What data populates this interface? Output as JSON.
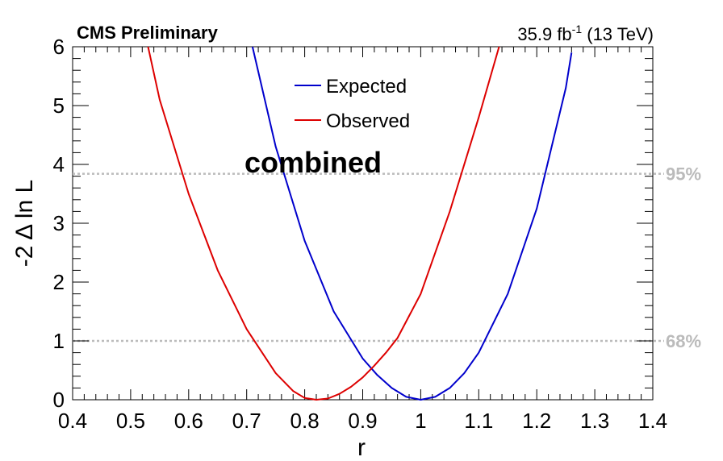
{
  "chart_data": {
    "type": "line",
    "header_left": "CMS Preliminary",
    "lumi": "35.9 fb",
    "lumi_exp": "-1",
    "energy": "(13 TeV)",
    "annotation": "combined",
    "xlabel": "r",
    "ylabel": "-2 Δ ln L",
    "xlim": [
      0.4,
      1.4
    ],
    "ylim": [
      0,
      6
    ],
    "x_ticks": [
      "0.4",
      "0.5",
      "0.6",
      "0.7",
      "0.8",
      "0.9",
      "1",
      "1.1",
      "1.2",
      "1.3",
      "1.4"
    ],
    "y_ticks": [
      "0",
      "1",
      "2",
      "3",
      "4",
      "5",
      "6"
    ],
    "legend_position": "top-center",
    "series": [
      {
        "name": "Expected",
        "color": "#0000cc",
        "x": [
          0.71,
          0.75,
          0.8,
          0.85,
          0.9,
          0.925,
          0.95,
          0.975,
          1.0,
          1.025,
          1.05,
          1.075,
          1.1,
          1.15,
          1.2,
          1.25,
          1.26
        ],
        "y": [
          6.0,
          4.3,
          2.7,
          1.5,
          0.7,
          0.42,
          0.2,
          0.05,
          0.0,
          0.05,
          0.2,
          0.45,
          0.8,
          1.8,
          3.25,
          5.3,
          5.9
        ]
      },
      {
        "name": "Observed",
        "color": "#dd0000",
        "x": [
          0.53,
          0.55,
          0.6,
          0.65,
          0.7,
          0.75,
          0.78,
          0.8,
          0.82,
          0.84,
          0.86,
          0.88,
          0.9,
          0.92,
          0.94,
          0.96,
          1.0,
          1.05,
          1.1,
          1.135
        ],
        "y": [
          6.0,
          5.1,
          3.5,
          2.2,
          1.2,
          0.45,
          0.15,
          0.03,
          0.0,
          0.02,
          0.1,
          0.22,
          0.38,
          0.58,
          0.8,
          1.05,
          1.8,
          3.2,
          4.8,
          6.0
        ]
      }
    ],
    "reference_lines": [
      {
        "y": 1.0,
        "label": "68%",
        "color": "#bbbbbb"
      },
      {
        "y": 3.84,
        "label": "95%",
        "color": "#bbbbbb"
      }
    ]
  }
}
